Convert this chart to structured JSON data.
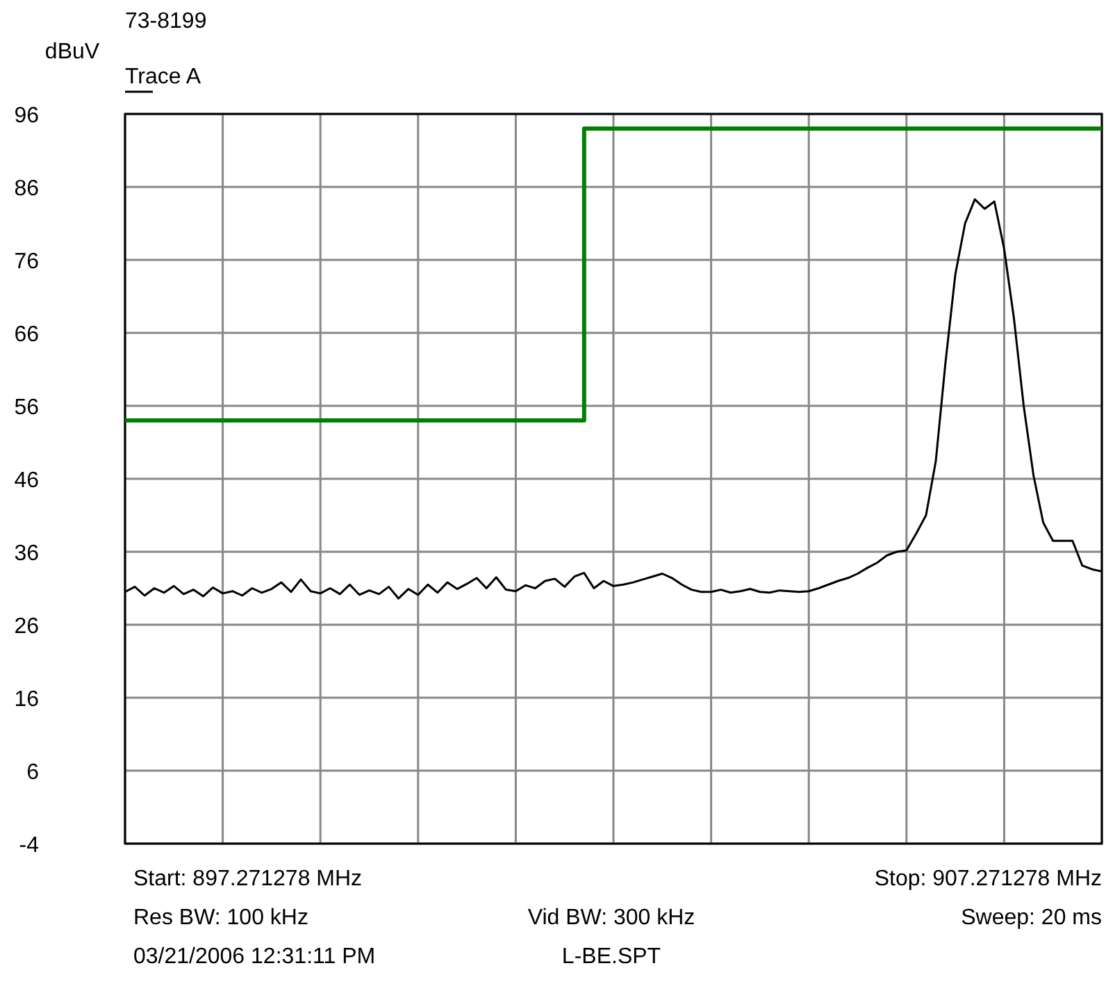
{
  "chart_data": {
    "type": "line",
    "title": "73-8199",
    "ylabel": "dBuV",
    "categories": [
      null,
      null,
      null,
      null,
      null,
      null,
      null,
      null,
      null,
      null,
      null,
      null,
      null,
      null,
      null,
      null,
      null,
      null,
      null,
      null,
      null,
      null,
      null,
      null,
      null,
      null,
      null,
      null,
      null,
      null,
      null,
      null,
      null,
      null,
      null,
      null,
      null,
      null,
      null,
      null,
      null,
      null,
      null,
      null,
      null,
      null,
      null,
      null,
      null,
      null,
      null,
      null,
      null,
      null,
      null,
      null,
      null,
      null,
      null,
      null,
      null,
      null,
      null,
      null,
      null,
      null,
      null,
      null,
      null,
      null,
      null,
      null,
      null,
      null,
      null,
      null,
      null,
      null,
      null,
      null,
      null,
      null,
      null,
      null,
      null,
      null,
      null,
      null,
      null,
      null,
      null,
      null,
      null,
      null,
      null,
      null,
      null,
      null,
      null,
      null,
      null
    ],
    "ylim": [
      -4,
      96
    ],
    "yticks": [
      -4,
      6,
      16,
      26,
      36,
      46,
      56,
      66,
      76,
      86,
      96
    ],
    "grid": true,
    "legend": "top left",
    "series": [
      {
        "type": "step",
        "color": "#008000",
        "values": [
          54,
          54,
          54,
          54,
          54,
          54,
          54,
          54,
          54,
          54,
          54,
          54,
          54,
          54,
          54,
          54,
          54,
          54,
          54,
          54,
          54,
          54,
          54,
          54,
          54,
          54,
          54,
          54,
          54,
          54,
          54,
          54,
          54,
          54,
          54,
          54,
          54,
          54,
          54,
          54,
          54,
          54,
          54,
          54,
          54,
          54,
          54,
          94,
          94,
          94,
          94,
          94,
          94,
          94,
          94,
          94,
          94,
          94,
          94,
          94,
          94,
          94,
          94,
          94,
          94,
          94,
          94,
          94,
          94,
          94,
          94,
          94,
          94,
          94,
          94,
          94,
          94,
          94,
          94,
          94,
          94,
          94,
          94,
          94,
          94,
          94,
          94,
          94,
          94,
          94,
          94,
          94,
          94,
          94,
          94,
          94,
          94,
          94,
          94,
          94,
          94
        ]
      },
      {
        "name": "Trace A",
        "type": "line",
        "color": "#000000",
        "values": [
          30.5,
          31.2,
          30.0,
          31.0,
          30.4,
          31.3,
          30.2,
          30.8,
          29.9,
          31.1,
          30.3,
          30.6,
          30.0,
          31.0,
          30.4,
          30.9,
          31.8,
          30.5,
          32.2,
          30.6,
          30.3,
          31.0,
          30.2,
          31.5,
          30.1,
          30.7,
          30.2,
          31.2,
          29.6,
          30.9,
          30.1,
          31.5,
          30.4,
          31.8,
          30.9,
          31.6,
          32.4,
          31.0,
          32.5,
          30.8,
          30.6,
          31.4,
          31.0,
          32.0,
          32.3,
          31.2,
          32.6,
          33.1,
          31.0,
          32.0,
          31.3,
          31.5,
          31.8,
          32.2,
          32.6,
          33.0,
          32.4,
          31.5,
          30.8,
          30.5,
          30.5,
          30.8,
          30.4,
          30.6,
          30.9,
          30.5,
          30.4,
          30.7,
          30.6,
          30.5,
          30.6,
          31.0,
          31.5,
          32.0,
          32.4,
          33.0,
          33.8,
          34.5,
          35.5,
          36.0,
          36.2,
          38.5,
          41,
          48.4,
          62,
          74,
          81,
          84.3,
          83,
          84,
          77.5,
          68,
          56,
          46.5,
          40,
          37.5,
          37.5,
          37.5,
          34.1,
          33.6,
          33.3
        ]
      }
    ],
    "annotations": [
      "Start: 897.271278 MHz",
      "Stop: 907.271278 MHz",
      "Res BW: 100 kHz",
      "Vid BW: 300 kHz",
      "Sweep: 20 ms",
      "03/21/2006 12:31:11 PM",
      "L-BE.SPT"
    ]
  }
}
